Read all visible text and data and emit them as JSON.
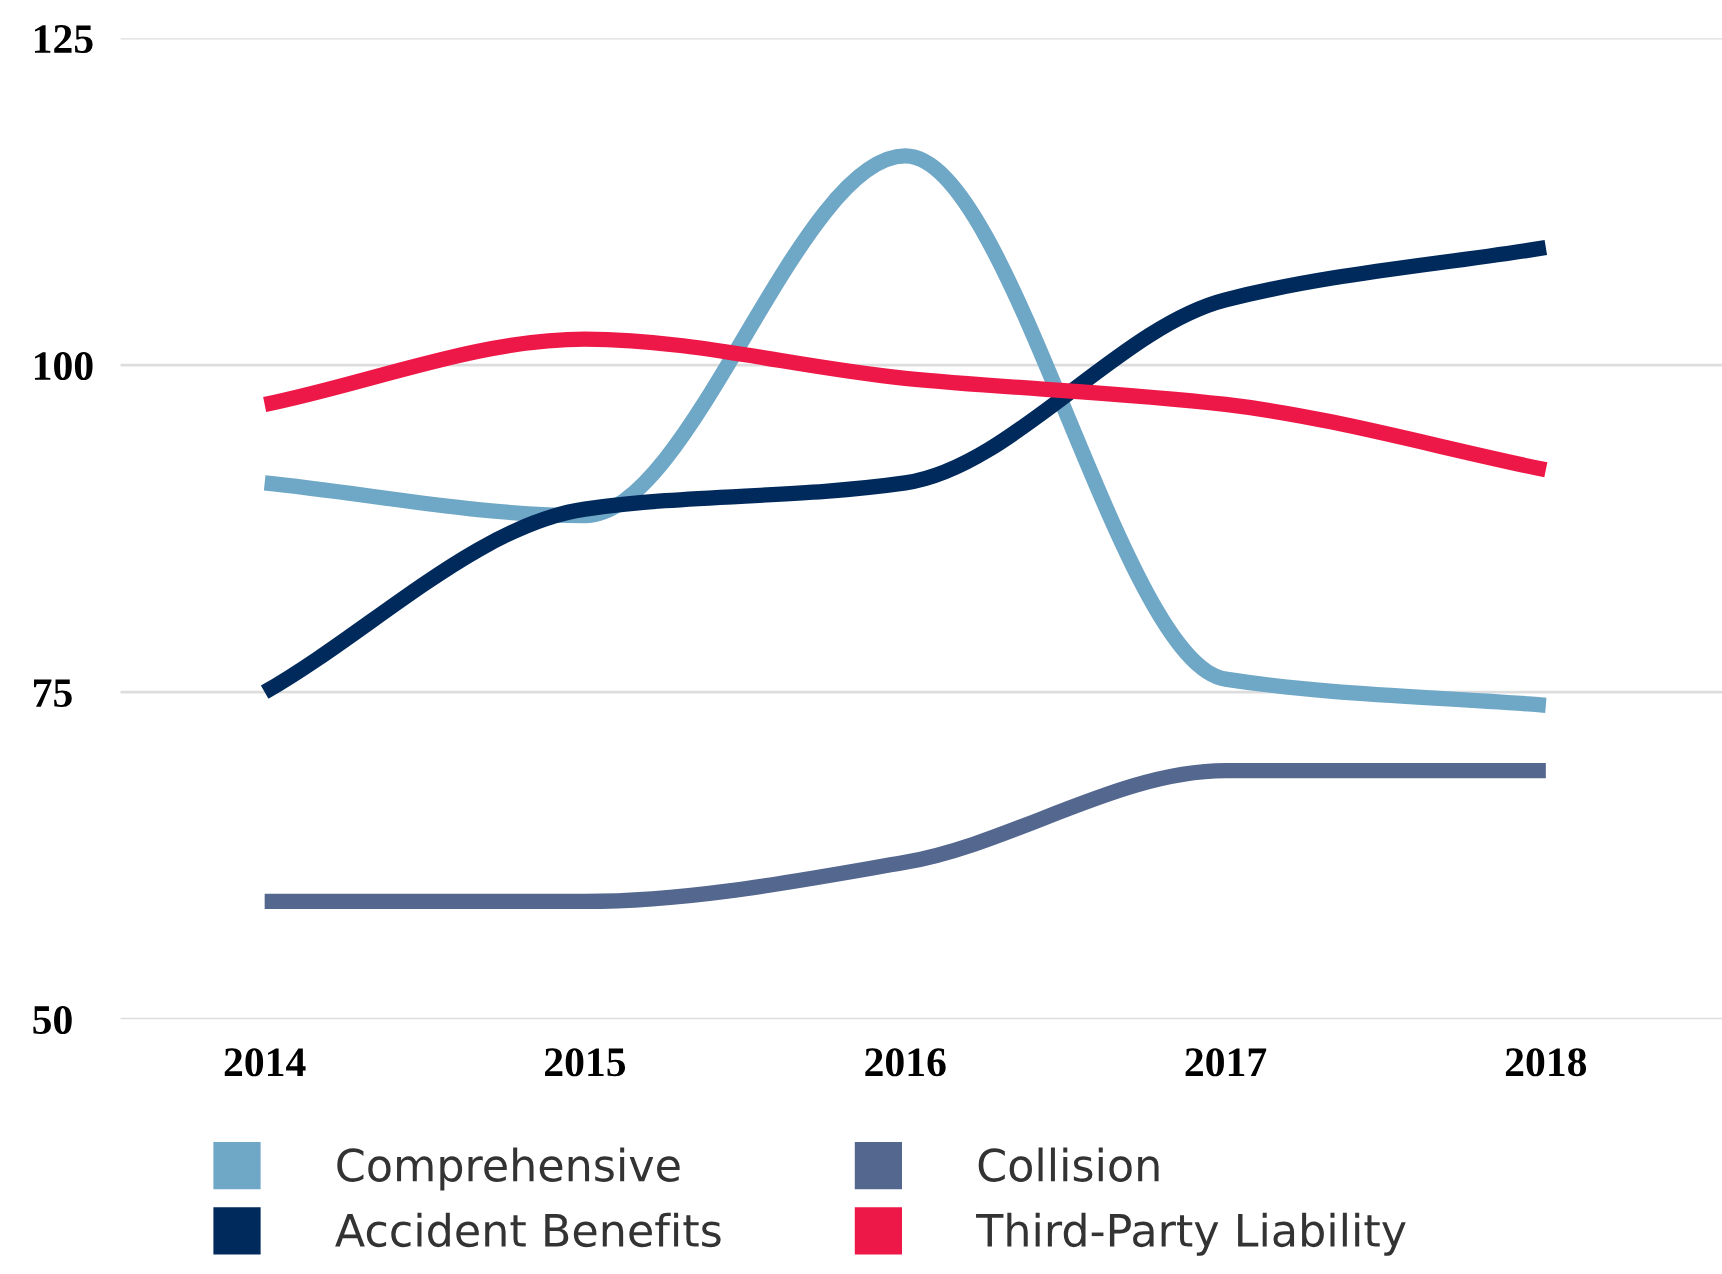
{
  "chart_data": {
    "type": "line",
    "categories": [
      "2014",
      "2015",
      "2016",
      "2017",
      "2018"
    ],
    "series": [
      {
        "name": "Comprehensive",
        "color": "#6fa7c7",
        "values": [
          91,
          88.5,
          116,
          76,
          74
        ]
      },
      {
        "name": "Collision",
        "color": "#54678f",
        "values": [
          59,
          59,
          62,
          69,
          69
        ]
      },
      {
        "name": "Accident Benefits",
        "color": "#002a5c",
        "values": [
          75,
          89,
          91,
          105,
          109
        ]
      },
      {
        "name": "Third-Party Liability",
        "color": "#ee1848",
        "values": [
          97,
          102,
          99,
          97,
          92
        ]
      }
    ],
    "ylim": [
      50,
      125
    ],
    "yticks": [
      50,
      75,
      100,
      125
    ],
    "grid": "y",
    "legend": "bottom",
    "marker": "none",
    "line_style": "solid"
  }
}
